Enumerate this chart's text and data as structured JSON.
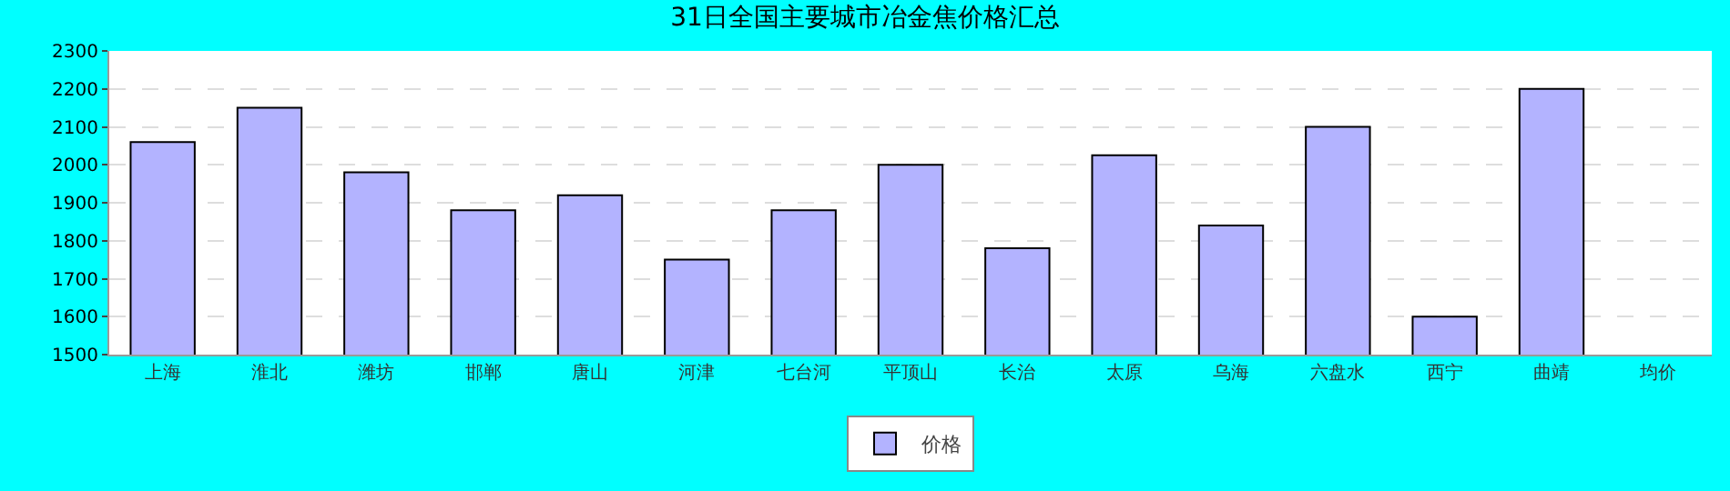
{
  "chart_data": {
    "type": "bar",
    "title": "31日全国主要城市冶金焦价格汇总",
    "categories": [
      "上海",
      "淮北",
      "潍坊",
      "邯郸",
      "唐山",
      "河津",
      "七台河",
      "平顶山",
      "长治",
      "太原",
      "乌海",
      "六盘水",
      "西宁",
      "曲靖",
      "均价"
    ],
    "series": [
      {
        "name": "价格",
        "color": "#b3b3ff",
        "values": [
          2060,
          2150,
          1980,
          1880,
          1920,
          1750,
          1880,
          2000,
          1780,
          2025,
          1840,
          2100,
          1600,
          2200,
          null
        ]
      }
    ],
    "ylim": [
      1500,
      2300
    ],
    "yticks": [
      1500,
      1600,
      1700,
      1800,
      1900,
      2000,
      2100,
      2200,
      2300
    ],
    "grid": "y",
    "legend": "bottom"
  }
}
